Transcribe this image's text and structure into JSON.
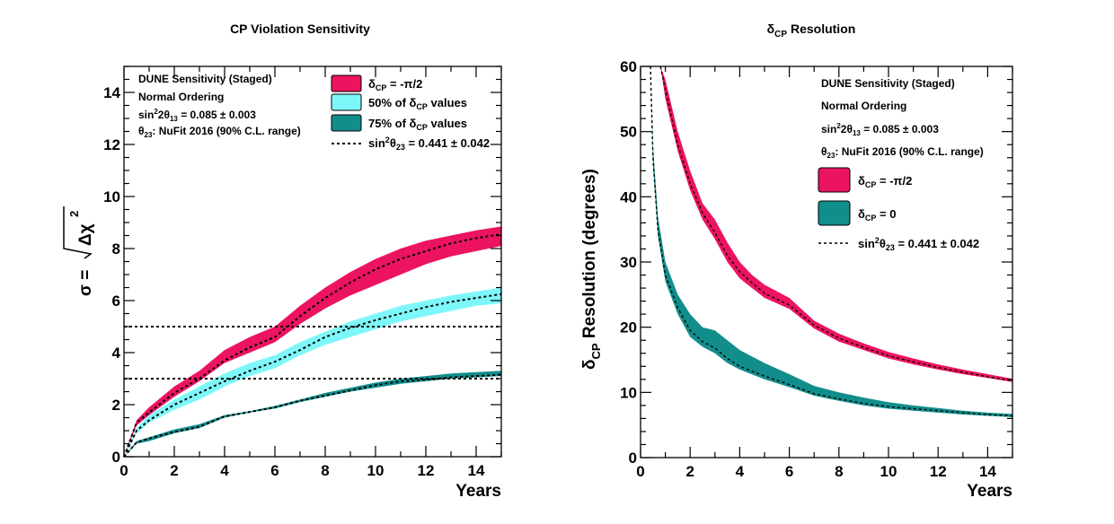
{
  "colors": {
    "red": "#ec1361",
    "cyan": "#7ef7fa",
    "teal": "#118e8c"
  },
  "chart_data": [
    {
      "type": "area",
      "title_main": "CP Violation Sensitivity",
      "xlabel": "Years",
      "ylabel_main": "σ = ",
      "ylabel_rad": "Δχ",
      "ylabel_sup": "2",
      "xlim": [
        0,
        15
      ],
      "ylim": [
        0,
        15
      ],
      "xticks": [
        "0",
        "2",
        "4",
        "6",
        "8",
        "10",
        "12",
        "14"
      ],
      "yticks": [
        "0",
        "2",
        "4",
        "6",
        "8",
        "10",
        "12",
        "14"
      ],
      "reference_lines": [
        3,
        5
      ],
      "annotations": {
        "line1": "DUNE Sensitivity (Staged)",
        "line2": "Normal Ordering",
        "line3_main": "sin",
        "line3_sup": "2",
        "line3_mid": "2θ",
        "line3_sub": "13",
        "line3_end": " = 0.085 ± 0.003",
        "line4_main": "θ",
        "line4_sub": "23",
        "line4_end": ": NuFit 2016 (90% C.L. range)"
      },
      "legend": {
        "red_main": "δ",
        "red_sub": "CP",
        "red_end": " = -π/2",
        "cyan_main": "50% of δ",
        "cyan_sub": "CP",
        "cyan_end": " values",
        "teal_main": "75% of δ",
        "teal_sub": "CP",
        "teal_end": " values",
        "line_main": "sin",
        "line_sup": "2",
        "line_mid": "θ",
        "line_sub": "23",
        "line_end": " = 0.441 ± 0.042"
      },
      "series": [
        {
          "color_key": "red",
          "x": [
            0,
            0.5,
            1,
            2,
            3,
            4,
            5,
            6,
            7,
            8,
            9,
            10,
            11,
            12,
            13,
            14,
            15
          ],
          "low": [
            0,
            1.2,
            1.6,
            2.3,
            2.9,
            3.6,
            4.0,
            4.4,
            5.1,
            5.7,
            6.2,
            6.6,
            7.0,
            7.4,
            7.7,
            7.9,
            8.1
          ],
          "high": [
            0,
            1.4,
            1.9,
            2.7,
            3.3,
            4.1,
            4.6,
            5.0,
            5.8,
            6.5,
            7.1,
            7.6,
            8.0,
            8.3,
            8.5,
            8.7,
            8.85
          ],
          "mid": [
            0,
            1.3,
            1.7,
            2.45,
            3.0,
            3.7,
            4.2,
            4.6,
            5.4,
            6.1,
            6.7,
            7.2,
            7.6,
            7.9,
            8.2,
            8.4,
            8.55
          ]
        },
        {
          "color_key": "cyan",
          "x": [
            0,
            0.5,
            1,
            2,
            3,
            4,
            5,
            6,
            7,
            8,
            9,
            10,
            11,
            12,
            13,
            14,
            15
          ],
          "low": [
            0,
            0.9,
            1.3,
            1.8,
            2.2,
            2.7,
            3.1,
            3.4,
            3.9,
            4.3,
            4.6,
            4.9,
            5.2,
            5.4,
            5.6,
            5.8,
            5.9
          ],
          "high": [
            0,
            1.1,
            1.6,
            2.2,
            2.7,
            3.2,
            3.6,
            3.9,
            4.4,
            4.8,
            5.2,
            5.5,
            5.8,
            6.0,
            6.2,
            6.35,
            6.5
          ],
          "mid": [
            0,
            1.0,
            1.4,
            2.0,
            2.45,
            2.9,
            3.3,
            3.65,
            4.1,
            4.6,
            4.95,
            5.25,
            5.5,
            5.75,
            5.95,
            6.1,
            6.25
          ]
        },
        {
          "color_key": "teal",
          "x": [
            0,
            0.5,
            1,
            2,
            3,
            4,
            5,
            6,
            7,
            8,
            9,
            10,
            11,
            12,
            13,
            14,
            15
          ],
          "low": [
            0,
            0.5,
            0.6,
            0.9,
            1.1,
            1.5,
            1.7,
            1.85,
            2.1,
            2.3,
            2.5,
            2.65,
            2.8,
            2.9,
            3.0,
            3.05,
            3.1
          ],
          "high": [
            0,
            0.6,
            0.75,
            1.05,
            1.25,
            1.6,
            1.75,
            1.95,
            2.2,
            2.45,
            2.65,
            2.85,
            3.0,
            3.1,
            3.2,
            3.25,
            3.3
          ],
          "mid": [
            0,
            0.55,
            0.7,
            0.95,
            1.15,
            1.55,
            1.72,
            1.9,
            2.15,
            2.35,
            2.55,
            2.75,
            2.9,
            2.95,
            3.05,
            3.1,
            3.15
          ]
        }
      ]
    },
    {
      "type": "area",
      "title_main": "δ",
      "title_sub": "CP",
      "title_end": " Resolution",
      "xlabel": "Years",
      "ylabel_main": "δ",
      "ylabel_sub": "CP",
      "ylabel_end": " Resolution (degrees)",
      "xlim": [
        0,
        15
      ],
      "ylim": [
        0,
        60
      ],
      "xticks": [
        "0",
        "2",
        "4",
        "6",
        "8",
        "10",
        "12",
        "14"
      ],
      "yticks": [
        "0",
        "10",
        "20",
        "30",
        "40",
        "50",
        "60"
      ],
      "annotations": {
        "line1": "DUNE Sensitivity (Staged)",
        "line2": "Normal Ordering",
        "line3_main": "sin",
        "line3_sup": "2",
        "line3_mid": "2θ",
        "line3_sub": "13",
        "line3_end": " = 0.085 ± 0.003",
        "line4_main": "θ",
        "line4_sub": "23",
        "line4_end": ": NuFit 2016 (90% C.L. range)"
      },
      "legend": {
        "red_main": "δ",
        "red_sub": "CP",
        "red_end": " = -π/2",
        "teal_main": "δ",
        "teal_sub": "CP",
        "teal_end": " = 0",
        "line_main": "sin",
        "line_sup": "2",
        "line_mid": "θ",
        "line_sub": "23",
        "line_end": " = 0.441 ± 0.042"
      },
      "series": [
        {
          "color_key": "red",
          "x": [
            0.8,
            1,
            1.5,
            2,
            2.5,
            3,
            3.5,
            4,
            4.5,
            5,
            6,
            7,
            8,
            9,
            10,
            11,
            12,
            13,
            14,
            15
          ],
          "low": [
            60,
            55,
            47,
            41,
            36.5,
            33.5,
            30,
            27.5,
            26,
            24.5,
            22.8,
            19.8,
            17.8,
            16.5,
            15.2,
            14.3,
            13.5,
            12.8,
            12.2,
            11.6
          ],
          "high": [
            60,
            58,
            50,
            44,
            39,
            36.5,
            33,
            30,
            28,
            26.5,
            24.5,
            21,
            19,
            17.5,
            16.2,
            15.2,
            14.3,
            13.5,
            12.8,
            12.1
          ],
          "mid": [
            60,
            56.5,
            48,
            42,
            37.5,
            34.5,
            31,
            28.5,
            26.8,
            25.2,
            23.4,
            20.3,
            18.3,
            16.9,
            15.6,
            14.7,
            13.8,
            13.1,
            12.4,
            11.8
          ]
        },
        {
          "color_key": "teal",
          "x": [
            0.4,
            0.5,
            0.7,
            1,
            1.5,
            2,
            2.5,
            3,
            3.5,
            4,
            5,
            6,
            7,
            8,
            9,
            10,
            11,
            12,
            13,
            14,
            15
          ],
          "low": [
            60,
            45,
            34,
            27,
            22,
            18.5,
            17,
            16,
            14.5,
            13.5,
            12,
            10.8,
            9.5,
            8.7,
            8.0,
            7.5,
            7.2,
            6.9,
            6.6,
            6.4,
            6.2
          ],
          "high": [
            60,
            48,
            37,
            30,
            25,
            22,
            20,
            19.5,
            18,
            16.5,
            14.5,
            12.8,
            11,
            10,
            9.2,
            8.5,
            8.0,
            7.6,
            7.2,
            6.9,
            6.7
          ],
          "mid": [
            60,
            46,
            35,
            28,
            23,
            19.5,
            17.8,
            16.8,
            15.2,
            14,
            12.5,
            11.2,
            9.8,
            9.0,
            8.3,
            7.8,
            7.5,
            7.2,
            6.9,
            6.6,
            6.4
          ]
        }
      ]
    }
  ]
}
